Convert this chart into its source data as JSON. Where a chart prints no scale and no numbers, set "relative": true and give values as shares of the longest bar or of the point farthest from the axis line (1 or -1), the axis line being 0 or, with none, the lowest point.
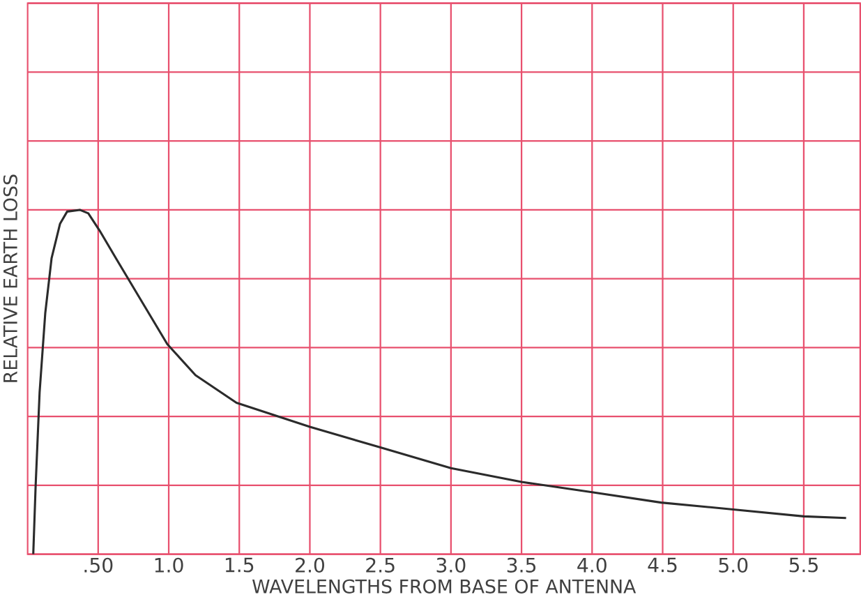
{
  "chart_data": {
    "type": "line",
    "relative": true,
    "xlabel": "WAVELENGTHS FROM BASE OF ANTENNA",
    "ylabel": "RELATIVE EARTH LOSS",
    "xlim": [
      0,
      5.9
    ],
    "xticks": [
      {
        "value": 0.5,
        "label": ".50"
      },
      {
        "value": 1.0,
        "label": "1.0"
      },
      {
        "value": 1.5,
        "label": "1.5"
      },
      {
        "value": 2.0,
        "label": "2.0"
      },
      {
        "value": 2.5,
        "label": "2.5"
      },
      {
        "value": 3.0,
        "label": "3.0"
      },
      {
        "value": 3.5,
        "label": "3.5"
      },
      {
        "value": 4.0,
        "label": "4.0"
      },
      {
        "value": 4.5,
        "label": "4.5"
      },
      {
        "value": 5.0,
        "label": "5.0"
      },
      {
        "value": 5.5,
        "label": "5.5"
      }
    ],
    "grid": true,
    "tick_labels": "x",
    "series": [
      {
        "color": "#2b2b2b",
        "x": [
          0.04,
          0.057,
          0.085,
          0.125,
          0.17,
          0.23,
          0.28,
          0.37,
          0.43,
          0.51,
          0.625,
          0.8,
          0.99,
          1.19,
          1.48,
          2.0,
          2.5,
          3.0,
          3.5,
          4.0,
          4.49,
          5.0,
          5.5,
          5.8
        ],
        "values": [
          0,
          0.2,
          0.47,
          0.7,
          0.86,
          0.96,
          0.995,
          1.0,
          0.99,
          0.94,
          0.86,
          0.74,
          0.61,
          0.52,
          0.44,
          0.37,
          0.31,
          0.25,
          0.21,
          0.18,
          0.15,
          0.13,
          0.11,
          0.105
        ]
      }
    ]
  }
}
